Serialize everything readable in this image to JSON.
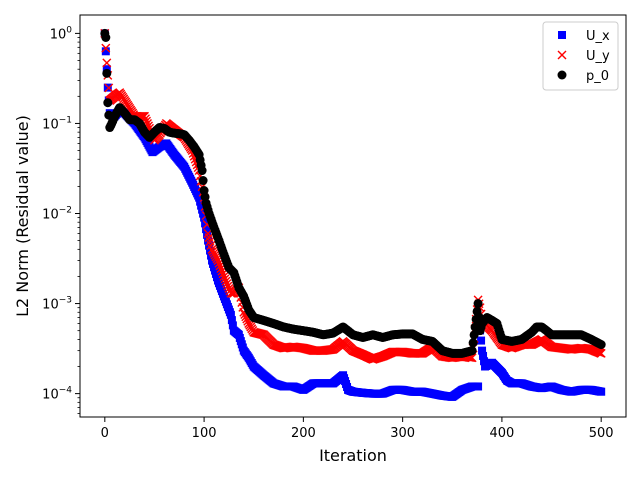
{
  "chart_data": {
    "type": "scatter",
    "xlabel": "Iteration",
    "ylabel": "L2 Norm (Residual value)",
    "xlim": [
      -25,
      525
    ],
    "ylim": [
      5.5e-05,
      1.6
    ],
    "y_scale": "log",
    "grid": false,
    "legend_position": "top-right",
    "x_ticks": [
      0,
      100,
      200,
      300,
      400,
      500
    ],
    "x_tick_labels": [
      "0",
      "100",
      "200",
      "300",
      "400",
      "500"
    ],
    "y_ticks": [
      0.0001,
      0.001,
      0.01,
      0.1,
      1
    ],
    "y_tick_labels": [
      "10",
      "10",
      "10",
      "10",
      "10"
    ],
    "y_tick_exponents": [
      "−4",
      "−3",
      "−2",
      "−1",
      "0"
    ],
    "series": [
      {
        "name": "U_x",
        "marker": "square",
        "color": "#0000ff",
        "points": [
          [
            0,
            1.0
          ],
          [
            2,
            0.4
          ],
          [
            3,
            0.25
          ],
          [
            5,
            0.13
          ],
          [
            10,
            0.12
          ],
          [
            15,
            0.14
          ],
          [
            20,
            0.13
          ],
          [
            30,
            0.1
          ],
          [
            40,
            0.07
          ],
          [
            48,
            0.048
          ],
          [
            55,
            0.055
          ],
          [
            62,
            0.06
          ],
          [
            70,
            0.045
          ],
          [
            80,
            0.033
          ],
          [
            88,
            0.022
          ],
          [
            95,
            0.015
          ],
          [
            100,
            0.009
          ],
          [
            104,
            0.005
          ],
          [
            108,
            0.003
          ],
          [
            114,
            0.0018
          ],
          [
            120,
            0.0012
          ],
          [
            127,
            0.00075
          ],
          [
            130,
            0.0005
          ],
          [
            135,
            0.00045
          ],
          [
            140,
            0.0003
          ],
          [
            145,
            0.00025
          ],
          [
            150,
            0.0002
          ],
          [
            160,
            0.00016
          ],
          [
            170,
            0.00013
          ],
          [
            180,
            0.00012
          ],
          [
            190,
            0.00012
          ],
          [
            200,
            0.00011
          ],
          [
            210,
            0.00013
          ],
          [
            220,
            0.00013
          ],
          [
            230,
            0.00013
          ],
          [
            240,
            0.00016
          ],
          [
            245,
            0.00011
          ],
          [
            250,
            0.000105
          ],
          [
            260,
            0.000102
          ],
          [
            270,
            0.0001
          ],
          [
            280,
            0.0001
          ],
          [
            290,
            0.00011
          ],
          [
            300,
            0.00011
          ],
          [
            310,
            0.000105
          ],
          [
            320,
            0.000105
          ],
          [
            330,
            0.0001
          ],
          [
            340,
            9.5e-05
          ],
          [
            350,
            9.2e-05
          ],
          [
            360,
            0.00011
          ],
          [
            370,
            0.00012
          ],
          [
            376,
            0.00012
          ],
          [
            377,
            0.00065
          ],
          [
            380,
            0.0003
          ],
          [
            383,
            0.0002
          ],
          [
            390,
            0.00022
          ],
          [
            400,
            0.00017
          ],
          [
            405,
            0.00014
          ],
          [
            410,
            0.00013
          ],
          [
            420,
            0.00013
          ],
          [
            430,
            0.00012
          ],
          [
            440,
            0.000115
          ],
          [
            450,
            0.00012
          ],
          [
            460,
            0.00011
          ],
          [
            470,
            0.000105
          ],
          [
            480,
            0.00011
          ],
          [
            490,
            0.00011
          ],
          [
            500,
            0.000105
          ]
        ]
      },
      {
        "name": "U_y",
        "marker": "x",
        "color": "#ff0000",
        "points": [
          [
            0,
            1.0
          ],
          [
            2,
            0.47
          ],
          [
            5,
            0.18
          ],
          [
            10,
            0.2
          ],
          [
            15,
            0.22
          ],
          [
            20,
            0.18
          ],
          [
            30,
            0.12
          ],
          [
            40,
            0.12
          ],
          [
            50,
            0.065
          ],
          [
            55,
            0.075
          ],
          [
            62,
            0.1
          ],
          [
            70,
            0.085
          ],
          [
            80,
            0.07
          ],
          [
            88,
            0.05
          ],
          [
            95,
            0.03
          ],
          [
            100,
            0.015
          ],
          [
            104,
            0.006
          ],
          [
            108,
            0.004
          ],
          [
            114,
            0.003
          ],
          [
            120,
            0.002
          ],
          [
            127,
            0.0013
          ],
          [
            130,
            0.0013
          ],
          [
            135,
            0.0015
          ],
          [
            140,
            0.0008
          ],
          [
            145,
            0.0006
          ],
          [
            150,
            0.00048
          ],
          [
            160,
            0.00045
          ],
          [
            170,
            0.00035
          ],
          [
            180,
            0.00032
          ],
          [
            190,
            0.00033
          ],
          [
            200,
            0.00032
          ],
          [
            210,
            0.0003
          ],
          [
            220,
            0.0003
          ],
          [
            230,
            0.00031
          ],
          [
            240,
            0.00038
          ],
          [
            250,
            0.0003
          ],
          [
            260,
            0.00027
          ],
          [
            270,
            0.00024
          ],
          [
            280,
            0.00026
          ],
          [
            290,
            0.00029
          ],
          [
            300,
            0.00029
          ],
          [
            310,
            0.00028
          ],
          [
            320,
            0.00028
          ],
          [
            330,
            0.00033
          ],
          [
            340,
            0.00026
          ],
          [
            350,
            0.00025
          ],
          [
            360,
            0.00026
          ],
          [
            370,
            0.00025
          ],
          [
            376,
            0.0011
          ],
          [
            378,
            0.0009
          ],
          [
            380,
            0.00065
          ],
          [
            390,
            0.0005
          ],
          [
            400,
            0.00035
          ],
          [
            410,
            0.00032
          ],
          [
            420,
            0.00035
          ],
          [
            430,
            0.00035
          ],
          [
            440,
            0.0004
          ],
          [
            450,
            0.00033
          ],
          [
            460,
            0.00032
          ],
          [
            470,
            0.00031
          ],
          [
            480,
            0.00032
          ],
          [
            490,
            0.00031
          ],
          [
            500,
            0.00028
          ]
        ]
      },
      {
        "name": "p_0",
        "marker": "circle",
        "color": "#000000",
        "points": [
          [
            0,
            1.0
          ],
          [
            1,
            0.9
          ],
          [
            2,
            0.36
          ],
          [
            3,
            0.17
          ],
          [
            5,
            0.09
          ],
          [
            7,
            0.1
          ],
          [
            10,
            0.12
          ],
          [
            15,
            0.15
          ],
          [
            20,
            0.13
          ],
          [
            25,
            0.11
          ],
          [
            30,
            0.11
          ],
          [
            35,
            0.1
          ],
          [
            40,
            0.08
          ],
          [
            45,
            0.07
          ],
          [
            50,
            0.08
          ],
          [
            55,
            0.09
          ],
          [
            60,
            0.088
          ],
          [
            65,
            0.08
          ],
          [
            70,
            0.078
          ],
          [
            75,
            0.077
          ],
          [
            80,
            0.075
          ],
          [
            85,
            0.065
          ],
          [
            90,
            0.055
          ],
          [
            95,
            0.045
          ],
          [
            98,
            0.03
          ],
          [
            100,
            0.018
          ],
          [
            102,
            0.013
          ],
          [
            105,
            0.01
          ],
          [
            110,
            0.007
          ],
          [
            115,
            0.005
          ],
          [
            120,
            0.0035
          ],
          [
            125,
            0.0025
          ],
          [
            130,
            0.0022
          ],
          [
            135,
            0.0015
          ],
          [
            140,
            0.0012
          ],
          [
            145,
            0.00085
          ],
          [
            150,
            0.0007
          ],
          [
            160,
            0.00065
          ],
          [
            170,
            0.0006
          ],
          [
            180,
            0.00055
          ],
          [
            190,
            0.00052
          ],
          [
            200,
            0.0005
          ],
          [
            210,
            0.00048
          ],
          [
            220,
            0.00045
          ],
          [
            230,
            0.00047
          ],
          [
            240,
            0.00055
          ],
          [
            250,
            0.00045
          ],
          [
            260,
            0.00042
          ],
          [
            270,
            0.00045
          ],
          [
            280,
            0.00042
          ],
          [
            290,
            0.00045
          ],
          [
            300,
            0.00046
          ],
          [
            310,
            0.00046
          ],
          [
            320,
            0.0004
          ],
          [
            330,
            0.00038
          ],
          [
            340,
            0.0003
          ],
          [
            350,
            0.00028
          ],
          [
            360,
            0.00028
          ],
          [
            370,
            0.0003
          ],
          [
            376,
            0.001
          ],
          [
            378,
            0.0005
          ],
          [
            380,
            0.0006
          ],
          [
            385,
            0.0007
          ],
          [
            390,
            0.00065
          ],
          [
            395,
            0.0006
          ],
          [
            400,
            0.0004
          ],
          [
            410,
            0.00038
          ],
          [
            420,
            0.0004
          ],
          [
            430,
            0.00048
          ],
          [
            435,
            0.00055
          ],
          [
            440,
            0.00055
          ],
          [
            445,
            0.0005
          ],
          [
            450,
            0.00045
          ],
          [
            460,
            0.00045
          ],
          [
            470,
            0.00045
          ],
          [
            480,
            0.00045
          ],
          [
            490,
            0.0004
          ],
          [
            500,
            0.00035
          ]
        ]
      }
    ]
  }
}
